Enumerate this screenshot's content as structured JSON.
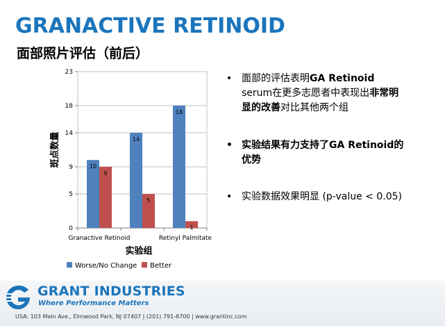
{
  "header": {
    "title": "GRANACTIVE RETINOID",
    "subtitle": "面部照片评估（前后）"
  },
  "chart_data": {
    "type": "bar",
    "categories": [
      "Granactive Retinoid",
      "",
      "Retinyl Palmitate"
    ],
    "series": [
      {
        "name": "Worse/No Change",
        "values": [
          10,
          14,
          18
        ],
        "color": "#4f81bd"
      },
      {
        "name": "Better",
        "values": [
          9,
          5,
          1
        ],
        "color": "#c0504d"
      }
    ],
    "data_labels": [
      [
        "10",
        "14",
        "18"
      ],
      [
        "9",
        "5",
        "1"
      ]
    ],
    "xlabel": "实验组",
    "ylabel": "斑点数量",
    "ylim": [
      0,
      23
    ],
    "yticks": [
      0,
      5,
      9,
      14,
      18,
      23
    ],
    "grid": true,
    "legend": "bottom"
  },
  "bullets": {
    "b1": {
      "t1": "面部的评估表明",
      "t2": "GA Retinoid",
      "t3": "serum在更多志愿者中表现出",
      "t4": "非常明显的改善",
      "t5": "对比其他两个组"
    },
    "b2": "实验结果有力支持了GA Retinoid的优势",
    "b3": "实验数据效果明显 (p-value < 0.05)"
  },
  "footer": {
    "brand": "GRANT INDUSTRIES",
    "tagline": "Where Performance Matters",
    "address": "USA: 103 Main Ave., Elmwood Park, NJ 07407  |  (201) 791-8700  |  www.grantinc.com"
  }
}
